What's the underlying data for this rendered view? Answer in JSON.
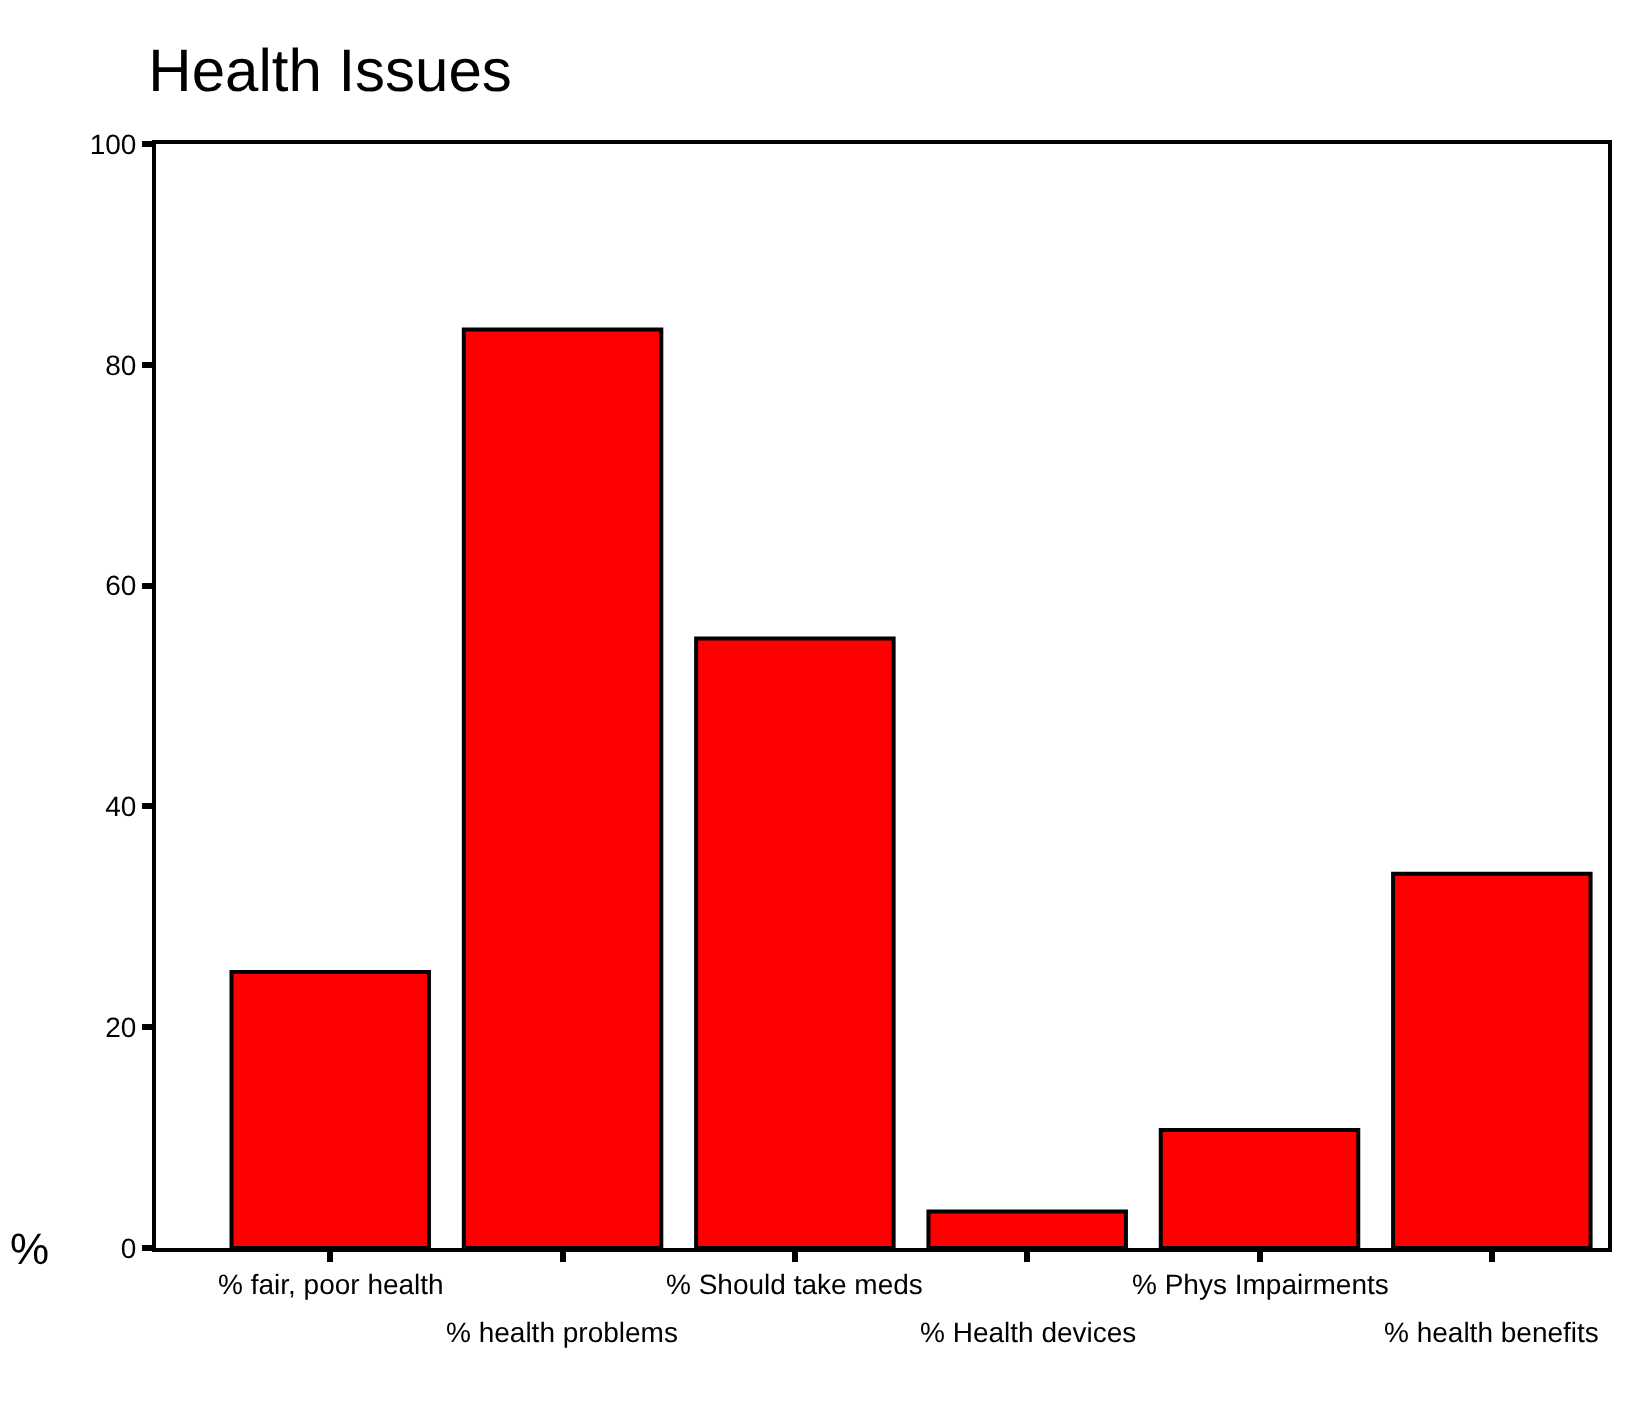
{
  "chart_data": {
    "type": "bar",
    "title": "Health Issues",
    "ylabel": "%",
    "categories": [
      "% fair, poor health",
      "% health problems",
      "% Should take meds",
      "% Health devices",
      "% Phys Impairments",
      "% health benefits"
    ],
    "values": [
      25.0,
      83.2,
      55.2,
      3.3,
      10.7,
      33.9
    ],
    "color": "#ff0000",
    "ylim": [
      0,
      100
    ],
    "yticks": [
      0,
      20,
      40,
      60,
      80,
      100
    ]
  }
}
